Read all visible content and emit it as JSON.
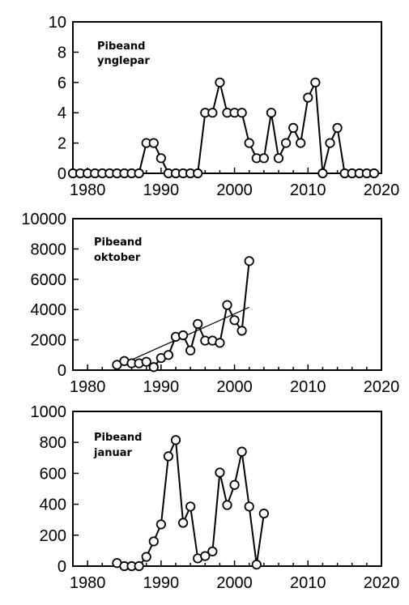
{
  "chart_data": [
    {
      "type": "line",
      "title": "Pibeand ynglepar",
      "title_lines": [
        "Pibeand",
        "ynglepar"
      ],
      "xlim": [
        1978,
        2020
      ],
      "ylim": [
        0,
        10
      ],
      "xticks": [
        1980,
        1990,
        2000,
        2010,
        2020
      ],
      "yticks": [
        0,
        2,
        4,
        6,
        8,
        10
      ],
      "legend": "none",
      "grid": false,
      "series": [
        {
          "x": [
            1978,
            1979,
            1980,
            1981,
            1982,
            1983,
            1984,
            1985,
            1986,
            1987,
            1988,
            1989,
            1990,
            1991,
            1992,
            1993,
            1994,
            1995,
            1996,
            1997,
            1998,
            1999,
            2000,
            2001,
            2002,
            2003,
            2004,
            2005,
            2006,
            2007,
            2008,
            2009,
            2010,
            2011,
            2012,
            2013,
            2014,
            2015,
            2016,
            2017,
            2018,
            2019
          ],
          "y": [
            0,
            0,
            0,
            0,
            0,
            0,
            0,
            0,
            0,
            0,
            2,
            2,
            1,
            0,
            0,
            0,
            0,
            0,
            4,
            4,
            6,
            4,
            4,
            4,
            2,
            1,
            1,
            4,
            1,
            2,
            3,
            2,
            5,
            6,
            0,
            2,
            3,
            0,
            0,
            0,
            0,
            0
          ]
        }
      ]
    },
    {
      "type": "line",
      "title": "Pibeand oktober",
      "title_lines": [
        "Pibeand",
        "oktober"
      ],
      "xlim": [
        1978,
        2020
      ],
      "ylim": [
        0,
        10000
      ],
      "xticks": [
        1980,
        1990,
        2000,
        2010,
        2020
      ],
      "yticks": [
        0,
        2000,
        4000,
        6000,
        8000,
        10000
      ],
      "legend": "none",
      "grid": false,
      "series": [
        {
          "x": [
            1984,
            1985,
            1986,
            1987,
            1988,
            1989,
            1990,
            1991,
            1992,
            1993,
            1994,
            1995,
            1996,
            1997,
            1998,
            1999,
            2000,
            2001,
            2002
          ],
          "y": [
            350,
            600,
            450,
            450,
            550,
            200,
            800,
            1000,
            2200,
            2300,
            1300,
            3050,
            1950,
            1950,
            1800,
            4300,
            3300,
            2600,
            7200
          ]
        }
      ],
      "trend": {
        "x": [
          1984,
          2002
        ],
        "y": [
          250,
          4150
        ]
      }
    },
    {
      "type": "line",
      "title": "Pibeand januar",
      "title_lines": [
        "Pibeand",
        "januar"
      ],
      "xlim": [
        1978,
        2020
      ],
      "ylim": [
        0,
        1000
      ],
      "xticks": [
        1980,
        1990,
        2000,
        2010,
        2020
      ],
      "yticks": [
        0,
        200,
        400,
        600,
        800,
        1000
      ],
      "legend": "none",
      "grid": false,
      "series": [
        {
          "x": [
            1984,
            1985,
            1986,
            1987,
            1988,
            1989,
            1990,
            1991,
            1992,
            1993,
            1994,
            1995,
            1996,
            1997,
            1998,
            1999,
            2000,
            2001,
            2002,
            2003,
            2004
          ],
          "y": [
            20,
            0,
            0,
            0,
            60,
            160,
            270,
            710,
            815,
            280,
            385,
            50,
            65,
            95,
            605,
            395,
            525,
            740,
            385,
            10,
            340
          ]
        }
      ]
    }
  ]
}
